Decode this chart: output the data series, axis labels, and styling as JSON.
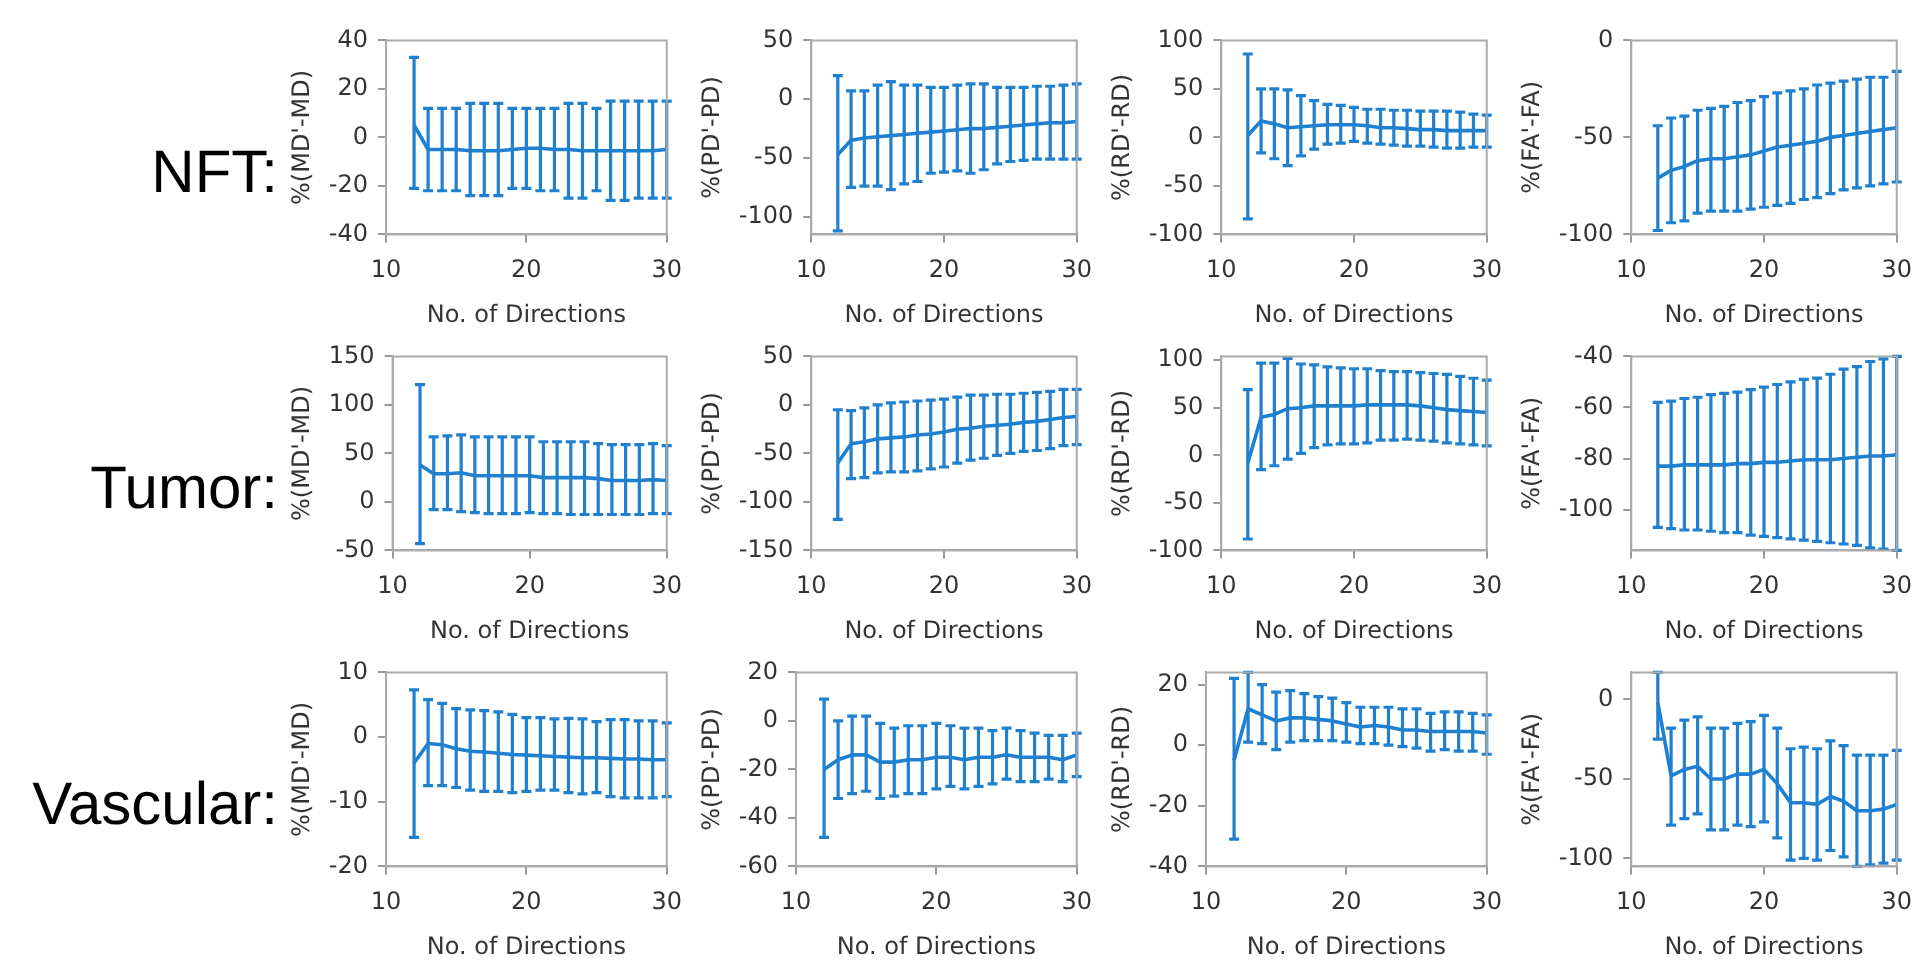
{
  "chart_data": [
    {
      "type": "line",
      "annotations": [
        "NFT:"
      ],
      "xlabel": "No. of Directions",
      "ylabel": "%(MD'-MD)",
      "x": [
        12,
        13,
        14,
        15,
        16,
        17,
        18,
        19,
        20,
        21,
        22,
        23,
        24,
        25,
        26,
        27,
        28,
        29,
        30
      ],
      "color": "#1f80d0",
      "xlim": [
        10,
        30
      ],
      "xticks": [
        10,
        20,
        30
      ],
      "ylim": [
        -40,
        40
      ],
      "yticks": [
        -40,
        -20,
        0,
        20,
        40
      ],
      "values": [
        5,
        -5,
        -5,
        -5,
        -5.5,
        -5.5,
        -5.5,
        -5,
        -4.5,
        -4.5,
        -5,
        -5,
        -5.5,
        -5.5,
        -5.5,
        -5.5,
        -5.5,
        -5.5,
        -5
      ],
      "errors": [
        [
          -21,
          33
        ],
        [
          -22,
          12
        ],
        [
          -22,
          12
        ],
        [
          -22,
          12
        ],
        [
          -24,
          14
        ],
        [
          -24,
          14
        ],
        [
          -24,
          14
        ],
        [
          -21,
          12
        ],
        [
          -21,
          12
        ],
        [
          -22,
          12
        ],
        [
          -22,
          12
        ],
        [
          -25,
          14
        ],
        [
          -25,
          14
        ],
        [
          -22,
          12
        ],
        [
          -26,
          15
        ],
        [
          -26,
          15
        ],
        [
          -25,
          15
        ],
        [
          -25,
          15
        ],
        [
          -25,
          15
        ]
      ]
    },
    {
      "type": "line",
      "xlabel": "No. of Directions",
      "ylabel": "%(PD'-PD)",
      "x": [
        12,
        13,
        14,
        15,
        16,
        17,
        18,
        19,
        20,
        21,
        22,
        23,
        24,
        25,
        26,
        27,
        28,
        29,
        30
      ],
      "color": "#1f80d0",
      "xlim": [
        10,
        30
      ],
      "xticks": [
        10,
        20,
        30
      ],
      "ylim": [
        -115,
        50
      ],
      "yticks": [
        -100,
        -50,
        0,
        50
      ],
      "values": [
        -47,
        -35,
        -33,
        -32,
        -31,
        -30,
        -29,
        -28,
        -27,
        -26,
        -25,
        -25,
        -24,
        -23,
        -22,
        -21,
        -20,
        -20,
        -19
      ],
      "errors": [
        [
          -112,
          20
        ],
        [
          -75,
          7
        ],
        [
          -74,
          7
        ],
        [
          -74,
          12
        ],
        [
          -77,
          15
        ],
        [
          -72,
          12
        ],
        [
          -70,
          12
        ],
        [
          -63,
          10
        ],
        [
          -62,
          10
        ],
        [
          -61,
          12
        ],
        [
          -63,
          13
        ],
        [
          -60,
          13
        ],
        [
          -55,
          10
        ],
        [
          -53,
          10
        ],
        [
          -52,
          10
        ],
        [
          -51,
          11
        ],
        [
          -51,
          11
        ],
        [
          -51,
          12
        ],
        [
          -51,
          13
        ]
      ]
    },
    {
      "type": "line",
      "xlabel": "No. of Directions",
      "ylabel": "%(RD'-RD)",
      "x": [
        12,
        13,
        14,
        15,
        16,
        17,
        18,
        19,
        20,
        21,
        22,
        23,
        24,
        25,
        26,
        27,
        28,
        29,
        30
      ],
      "color": "#1f80d0",
      "xlim": [
        10,
        30
      ],
      "xticks": [
        10,
        20,
        30
      ],
      "ylim": [
        -100,
        100
      ],
      "yticks": [
        -100,
        -50,
        0,
        50,
        100
      ],
      "values": [
        2,
        17,
        14,
        10,
        11,
        12,
        13,
        13,
        13,
        12,
        10,
        10,
        9,
        8,
        8,
        7,
        7,
        7,
        7
      ],
      "errors": [
        [
          -84,
          86
        ],
        [
          -16,
          50
        ],
        [
          -22,
          50
        ],
        [
          -29,
          49
        ],
        [
          -19,
          43
        ],
        [
          -12,
          38
        ],
        [
          -7,
          34
        ],
        [
          -6,
          33
        ],
        [
          -4,
          31
        ],
        [
          -6,
          29
        ],
        [
          -7,
          29
        ],
        [
          -8,
          28
        ],
        [
          -9,
          28
        ],
        [
          -9,
          27
        ],
        [
          -10,
          27
        ],
        [
          -11,
          27
        ],
        [
          -11,
          26
        ],
        [
          -10,
          24
        ],
        [
          -10,
          23
        ]
      ]
    },
    {
      "type": "line",
      "xlabel": "No. of Directions",
      "ylabel": "%(FA'-FA)",
      "x": [
        12,
        13,
        14,
        15,
        16,
        17,
        18,
        19,
        20,
        21,
        22,
        23,
        24,
        25,
        26,
        27,
        28,
        29,
        30
      ],
      "color": "#1f80d0",
      "xlim": [
        10,
        30
      ],
      "xticks": [
        10,
        20,
        30
      ],
      "ylim": [
        -100,
        0
      ],
      "yticks": [
        -100,
        -50,
        0
      ],
      "values": [
        -71,
        -67,
        -65,
        -62,
        -61,
        -61,
        -60,
        -59,
        -57,
        -55,
        -54,
        -53,
        -52,
        -50,
        -49,
        -48,
        -47,
        -46,
        -45
      ],
      "errors": [
        [
          -98,
          -44
        ],
        [
          -94,
          -40
        ],
        [
          -93,
          -39
        ],
        [
          -89,
          -36
        ],
        [
          -88,
          -35
        ],
        [
          -88,
          -34
        ],
        [
          -88,
          -32
        ],
        [
          -87,
          -31
        ],
        [
          -86,
          -29
        ],
        [
          -85,
          -27
        ],
        [
          -84,
          -26
        ],
        [
          -82,
          -25
        ],
        [
          -81,
          -23
        ],
        [
          -79,
          -22
        ],
        [
          -77,
          -21
        ],
        [
          -76,
          -20
        ],
        [
          -75,
          -19
        ],
        [
          -74,
          -19
        ],
        [
          -73,
          -16
        ]
      ]
    },
    {
      "type": "line",
      "annotations": [
        "Tumor:"
      ],
      "xlabel": "No. of Directions",
      "ylabel": "%(MD'-MD)",
      "x": [
        12,
        13,
        14,
        15,
        16,
        17,
        18,
        19,
        20,
        21,
        22,
        23,
        24,
        25,
        26,
        27,
        28,
        29,
        30
      ],
      "color": "#1f80d0",
      "xlim": [
        10,
        30
      ],
      "xticks": [
        10,
        20,
        30
      ],
      "ylim": [
        -50,
        150
      ],
      "yticks": [
        -50,
        0,
        50,
        100,
        150
      ],
      "values": [
        38,
        29,
        29,
        30,
        27,
        27,
        27,
        27,
        27,
        25,
        25,
        25,
        25,
        24,
        22,
        22,
        22,
        23,
        22
      ],
      "errors": [
        [
          -43,
          121
        ],
        [
          -8,
          67
        ],
        [
          -8,
          68
        ],
        [
          -10,
          69
        ],
        [
          -11,
          67
        ],
        [
          -12,
          67
        ],
        [
          -12,
          67
        ],
        [
          -12,
          67
        ],
        [
          -11,
          67
        ],
        [
          -12,
          62
        ],
        [
          -12,
          62
        ],
        [
          -13,
          62
        ],
        [
          -13,
          62
        ],
        [
          -13,
          60
        ],
        [
          -13,
          59
        ],
        [
          -13,
          59
        ],
        [
          -13,
          59
        ],
        [
          -12,
          60
        ],
        [
          -12,
          58
        ]
      ]
    },
    {
      "type": "line",
      "xlabel": "No. of Directions",
      "ylabel": "%(PD'-PD)",
      "x": [
        12,
        13,
        14,
        15,
        16,
        17,
        18,
        19,
        20,
        21,
        22,
        23,
        24,
        25,
        26,
        27,
        28,
        29,
        30
      ],
      "color": "#1f80d0",
      "xlim": [
        10,
        30
      ],
      "xticks": [
        10,
        20,
        30
      ],
      "ylim": [
        -150,
        50
      ],
      "yticks": [
        -150,
        -100,
        -50,
        0,
        50
      ],
      "values": [
        -60,
        -40,
        -38,
        -35,
        -34,
        -33,
        -31,
        -30,
        -28,
        -25,
        -24,
        -22,
        -21,
        -20,
        -18,
        -17,
        -15,
        -13,
        -12
      ],
      "errors": [
        [
          -118,
          -5
        ],
        [
          -76,
          -6
        ],
        [
          -75,
          -3
        ],
        [
          -70,
          0
        ],
        [
          -69,
          2
        ],
        [
          -69,
          3
        ],
        [
          -68,
          4
        ],
        [
          -66,
          5
        ],
        [
          -64,
          6
        ],
        [
          -60,
          8
        ],
        [
          -57,
          10
        ],
        [
          -55,
          10
        ],
        [
          -52,
          11
        ],
        [
          -50,
          11
        ],
        [
          -48,
          12
        ],
        [
          -47,
          13
        ],
        [
          -45,
          14
        ],
        [
          -42,
          16
        ],
        [
          -41,
          16
        ]
      ]
    },
    {
      "type": "line",
      "xlabel": "No. of Directions",
      "ylabel": "%(RD'-RD)",
      "x": [
        12,
        13,
        14,
        15,
        16,
        17,
        18,
        19,
        20,
        21,
        22,
        23,
        24,
        25,
        26,
        27,
        28,
        29,
        30
      ],
      "color": "#1f80d0",
      "xlim": [
        10,
        30
      ],
      "xticks": [
        10,
        20,
        30
      ],
      "ylim": [
        -100,
        104
      ],
      "yticks": [
        -100,
        -50,
        0,
        50,
        100
      ],
      "values": [
        -8,
        40,
        43,
        49,
        50,
        52,
        52,
        52,
        52,
        53,
        53,
        53,
        53,
        52,
        50,
        48,
        47,
        46,
        45
      ],
      "errors": [
        [
          -88,
          69
        ],
        [
          -15,
          97
        ],
        [
          -11,
          97
        ],
        [
          -4,
          102
        ],
        [
          2,
          96
        ],
        [
          8,
          95
        ],
        [
          11,
          93
        ],
        [
          12,
          92
        ],
        [
          12,
          91
        ],
        [
          13,
          91
        ],
        [
          16,
          89
        ],
        [
          16,
          88
        ],
        [
          17,
          88
        ],
        [
          16,
          87
        ],
        [
          15,
          86
        ],
        [
          13,
          85
        ],
        [
          12,
          83
        ],
        [
          11,
          81
        ],
        [
          10,
          79
        ]
      ]
    },
    {
      "type": "line",
      "xlabel": "No. of Directions",
      "ylabel": "%(FA'-FA)",
      "x": [
        12,
        13,
        14,
        15,
        16,
        17,
        18,
        19,
        20,
        21,
        22,
        23,
        24,
        25,
        26,
        27,
        28,
        29,
        30
      ],
      "color": "#1f80d0",
      "xlim": [
        10,
        30
      ],
      "xticks": [
        10,
        20,
        30
      ],
      "ylim": [
        -116,
        -40
      ],
      "yticks": [
        -100,
        -80,
        -60,
        -40
      ],
      "values": [
        -83,
        -83,
        -82.5,
        -82.5,
        -82.5,
        -82.5,
        -82,
        -82,
        -81.5,
        -81.5,
        -81,
        -80.5,
        -80.5,
        -80.5,
        -80,
        -79.5,
        -79,
        -79,
        -78.5
      ],
      "errors": [
        [
          -107,
          -58
        ],
        [
          -107.5,
          -57.5
        ],
        [
          -108,
          -56.5
        ],
        [
          -108,
          -56
        ],
        [
          -108.5,
          -55
        ],
        [
          -109,
          -54.5
        ],
        [
          -109,
          -54
        ],
        [
          -110,
          -53
        ],
        [
          -110.5,
          -52
        ],
        [
          -111,
          -51
        ],
        [
          -111.5,
          -50
        ],
        [
          -112,
          -49
        ],
        [
          -112.5,
          -48.5
        ],
        [
          -113,
          -47
        ],
        [
          -113.5,
          -45
        ],
        [
          -114,
          -44
        ],
        [
          -115,
          -42
        ],
        [
          -115.5,
          -41
        ],
        [
          -116,
          -40
        ]
      ]
    },
    {
      "type": "line",
      "annotations": [
        "Vascular:"
      ],
      "xlabel": "No. of Directions",
      "ylabel": "%(MD'-MD)",
      "x": [
        12,
        13,
        14,
        15,
        16,
        17,
        18,
        19,
        20,
        21,
        22,
        23,
        24,
        25,
        26,
        27,
        28,
        29,
        30
      ],
      "color": "#1f80d0",
      "xlim": [
        10,
        30
      ],
      "xticks": [
        10,
        20,
        30
      ],
      "ylim": [
        -20,
        10
      ],
      "yticks": [
        -20,
        -10,
        0,
        10
      ],
      "values": [
        -4,
        -1,
        -1.2,
        -1.8,
        -2.2,
        -2.3,
        -2.5,
        -2.7,
        -2.8,
        -2.9,
        -3,
        -3.1,
        -3.2,
        -3.2,
        -3.3,
        -3.4,
        -3.4,
        -3.5,
        -3.5
      ],
      "errors": [
        [
          -15.5,
          7.3
        ],
        [
          -7.5,
          5.8
        ],
        [
          -7.5,
          5.2
        ],
        [
          -7.8,
          4.4
        ],
        [
          -8.2,
          4.2
        ],
        [
          -8.4,
          4.1
        ],
        [
          -8.4,
          3.9
        ],
        [
          -8.6,
          3.5
        ],
        [
          -8.4,
          3
        ],
        [
          -8.2,
          3
        ],
        [
          -8.2,
          2.8
        ],
        [
          -8.6,
          2.9
        ],
        [
          -8.8,
          2.8
        ],
        [
          -8.6,
          2.4
        ],
        [
          -9.2,
          2.7
        ],
        [
          -9.4,
          2.7
        ],
        [
          -9.4,
          2.5
        ],
        [
          -9.4,
          2.5
        ],
        [
          -9.2,
          2.2
        ]
      ]
    },
    {
      "type": "line",
      "xlabel": "No. of Directions",
      "ylabel": "%(PD'-PD)",
      "x": [
        12,
        13,
        14,
        15,
        16,
        17,
        18,
        19,
        20,
        21,
        22,
        23,
        24,
        25,
        26,
        27,
        28,
        29,
        30
      ],
      "color": "#1f80d0",
      "xlim": [
        10,
        30
      ],
      "xticks": [
        10,
        20,
        30
      ],
      "ylim": [
        -60,
        20
      ],
      "yticks": [
        -60,
        -40,
        -20,
        0,
        20
      ],
      "values": [
        -20,
        -16,
        -14,
        -14,
        -17,
        -17,
        -16,
        -16,
        -15,
        -15,
        -16,
        -15,
        -15,
        -14,
        -15,
        -15,
        -15,
        -16,
        -14
      ],
      "errors": [
        [
          -48,
          9
        ],
        [
          -32,
          0
        ],
        [
          -30,
          2
        ],
        [
          -29,
          2
        ],
        [
          -32,
          -1
        ],
        [
          -31,
          -3
        ],
        [
          -30,
          -2
        ],
        [
          -30,
          -2
        ],
        [
          -28,
          -1
        ],
        [
          -27,
          -2
        ],
        [
          -28,
          -3
        ],
        [
          -27,
          -3
        ],
        [
          -26,
          -4
        ],
        [
          -24,
          -3
        ],
        [
          -25,
          -4
        ],
        [
          -25,
          -5
        ],
        [
          -24,
          -6
        ],
        [
          -25,
          -6
        ],
        [
          -23,
          -5
        ]
      ]
    },
    {
      "type": "line",
      "xlabel": "No. of Directions",
      "ylabel": "%(RD'-RD)",
      "x": [
        12,
        13,
        14,
        15,
        16,
        17,
        18,
        19,
        20,
        21,
        22,
        23,
        24,
        25,
        26,
        27,
        28,
        29,
        30
      ],
      "color": "#1f80d0",
      "xlim": [
        10,
        30
      ],
      "xticks": [
        10,
        20,
        30
      ],
      "ylim": [
        -40,
        24
      ],
      "yticks": [
        -40,
        -20,
        0,
        20
      ],
      "values": [
        -5,
        12,
        10,
        8,
        9,
        9,
        8.5,
        8,
        7,
        6,
        6.5,
        6,
        5,
        5,
        4.5,
        4.5,
        4.5,
        4.5,
        4
      ],
      "errors": [
        [
          -31,
          22
        ],
        [
          1,
          24
        ],
        [
          0.5,
          20
        ],
        [
          -1.5,
          17.5
        ],
        [
          1,
          18
        ],
        [
          1.5,
          17
        ],
        [
          1.5,
          16
        ],
        [
          1.5,
          15.5
        ],
        [
          1,
          14
        ],
        [
          0.5,
          12.5
        ],
        [
          0.5,
          12.5
        ],
        [
          0,
          12.5
        ],
        [
          -0.5,
          12
        ],
        [
          -1,
          12
        ],
        [
          -2,
          10.5
        ],
        [
          -1.5,
          11
        ],
        [
          -2,
          11
        ],
        [
          -2,
          10.5
        ],
        [
          -3,
          10
        ]
      ]
    },
    {
      "type": "line",
      "xlabel": "No. of Directions",
      "ylabel": "%(FA'-FA)",
      "x": [
        12,
        13,
        14,
        15,
        16,
        17,
        18,
        19,
        20,
        21,
        22,
        23,
        24,
        25,
        26,
        27,
        28,
        29,
        30
      ],
      "color": "#1f80d0",
      "xlim": [
        10,
        30
      ],
      "xticks": [
        10,
        20,
        30
      ],
      "ylim": [
        -105,
        17
      ],
      "yticks": [
        -100,
        -50,
        0
      ],
      "values": [
        -2,
        -48,
        -44,
        -42,
        -50,
        -50,
        -47,
        -47,
        -44,
        -53,
        -65,
        -65,
        -66,
        -61,
        -64,
        -70,
        -70,
        -69,
        -66
      ],
      "errors": [
        [
          -25,
          17
        ],
        [
          -79,
          -18
        ],
        [
          -75,
          -13
        ],
        [
          -72,
          -11
        ],
        [
          -82,
          -18
        ],
        [
          -82,
          -18
        ],
        [
          -79,
          -15
        ],
        [
          -80,
          -14
        ],
        [
          -77,
          -10
        ],
        [
          -87,
          -18
        ],
        [
          -101,
          -31
        ],
        [
          -100,
          -30
        ],
        [
          -101,
          -31
        ],
        [
          -95,
          -26
        ],
        [
          -99,
          -29
        ],
        [
          -105,
          -35
        ],
        [
          -104,
          -35
        ],
        [
          -103,
          -35
        ],
        [
          -101,
          -32
        ]
      ]
    }
  ]
}
